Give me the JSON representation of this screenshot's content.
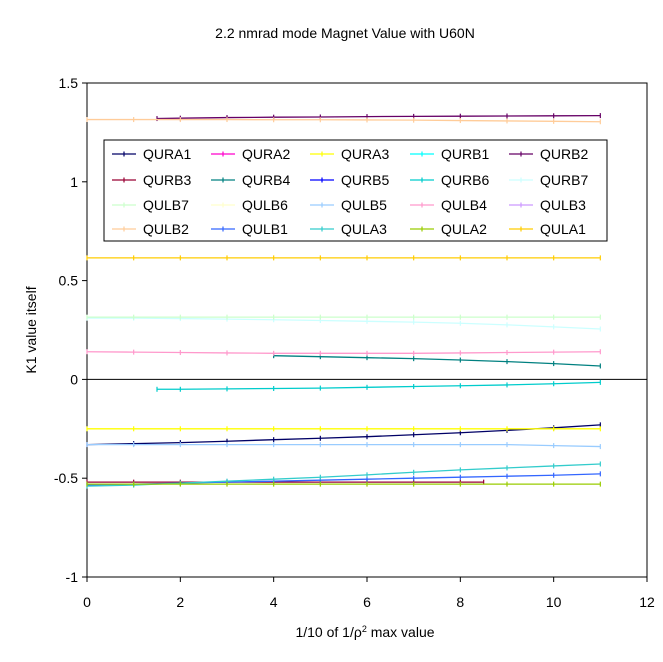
{
  "chart_data": {
    "type": "line",
    "title": "2.2 nmrad mode Magnet Value with U60N",
    "xlabel_prefix": "1/10 of 1/",
    "xlabel_rho": "ρ",
    "xlabel_sup": "2",
    "xlabel_suffix": " max value",
    "ylabel": "K1 value itself",
    "xlim": [
      0,
      12
    ],
    "ylim": [
      -1,
      1.5
    ],
    "xticks": [
      "0",
      "2",
      "4",
      "6",
      "8",
      "10",
      "12"
    ],
    "yticks": [
      "-1",
      "-0.5",
      "0",
      "0.5",
      "1",
      "1.5"
    ],
    "grid": false,
    "legend_position": "upper-center, inside plot area",
    "series": [
      {
        "name": "QURA1",
        "color": "#000066",
        "x": [
          0,
          1,
          2,
          3,
          4,
          5,
          6,
          7,
          8,
          9,
          10,
          11
        ],
        "values": [
          -0.33,
          -0.325,
          -0.32,
          -0.313,
          -0.305,
          -0.298,
          -0.29,
          -0.28,
          -0.27,
          -0.258,
          -0.245,
          -0.23
        ]
      },
      {
        "name": "QURA2",
        "color": "#ff00cc",
        "x": [],
        "values": []
      },
      {
        "name": "QURA3",
        "color": "#ffff00",
        "x": [
          0,
          1,
          2,
          3,
          4,
          5,
          6,
          7,
          8,
          9,
          10,
          11
        ],
        "values": [
          -0.25,
          -0.25,
          -0.25,
          -0.25,
          -0.25,
          -0.25,
          -0.25,
          -0.25,
          -0.25,
          -0.25,
          -0.25,
          -0.25
        ]
      },
      {
        "name": "QURB1",
        "color": "#00ffff",
        "x": [],
        "values": []
      },
      {
        "name": "QURB2",
        "color": "#660066",
        "x": [
          1.5,
          2,
          3,
          4,
          5,
          6,
          7,
          8,
          9,
          10,
          11
        ],
        "values": [
          1.32,
          1.322,
          1.325,
          1.327,
          1.328,
          1.33,
          1.331,
          1.332,
          1.333,
          1.334,
          1.335
        ]
      },
      {
        "name": "QURB3",
        "color": "#990033",
        "x": [
          0,
          1,
          2,
          3,
          4,
          5,
          6,
          7,
          8,
          8.5
        ],
        "values": [
          -0.52,
          -0.52,
          -0.52,
          -0.52,
          -0.52,
          -0.52,
          -0.52,
          -0.52,
          -0.52,
          -0.52
        ]
      },
      {
        "name": "QURB4",
        "color": "#008080",
        "x": [
          4,
          5,
          6,
          7,
          8,
          9,
          10,
          11
        ],
        "values": [
          0.12,
          0.115,
          0.11,
          0.105,
          0.098,
          0.09,
          0.08,
          0.068
        ]
      },
      {
        "name": "QURB5",
        "color": "#0000ff",
        "x": [],
        "values": []
      },
      {
        "name": "QURB6",
        "color": "#00cccc",
        "x": [
          1.5,
          2,
          3,
          4,
          5,
          6,
          7,
          8,
          9,
          10,
          11
        ],
        "values": [
          -0.05,
          -0.05,
          -0.048,
          -0.046,
          -0.044,
          -0.04,
          -0.036,
          -0.032,
          -0.028,
          -0.022,
          -0.015
        ]
      },
      {
        "name": "QURB7",
        "color": "#ccffff",
        "x": [
          0,
          1,
          2,
          3,
          4,
          5,
          6,
          7,
          8,
          9,
          10,
          11
        ],
        "values": [
          0.31,
          0.31,
          0.308,
          0.305,
          0.302,
          0.298,
          0.294,
          0.29,
          0.284,
          0.276,
          0.266,
          0.255
        ]
      },
      {
        "name": "QULB7",
        "color": "#ccffcc",
        "x": [
          0,
          1,
          2,
          3,
          4,
          5,
          6,
          7,
          8,
          9,
          10,
          11
        ],
        "values": [
          0.315,
          0.315,
          0.315,
          0.315,
          0.315,
          0.315,
          0.315,
          0.315,
          0.315,
          0.315,
          0.315,
          0.315
        ]
      },
      {
        "name": "QULB6",
        "color": "#ffffcc",
        "x": [],
        "values": []
      },
      {
        "name": "QULB5",
        "color": "#99ccff",
        "x": [
          0,
          1,
          2,
          3,
          4,
          5,
          6,
          7,
          8,
          9,
          10,
          11
        ],
        "values": [
          -0.33,
          -0.33,
          -0.33,
          -0.33,
          -0.33,
          -0.33,
          -0.33,
          -0.33,
          -0.33,
          -0.33,
          -0.335,
          -0.34
        ]
      },
      {
        "name": "QULB4",
        "color": "#ff99cc",
        "x": [
          0,
          1,
          2,
          3,
          4,
          5,
          6,
          7,
          8,
          9,
          10,
          11
        ],
        "values": [
          0.14,
          0.138,
          0.136,
          0.134,
          0.132,
          0.132,
          0.132,
          0.132,
          0.134,
          0.136,
          0.138,
          0.14
        ]
      },
      {
        "name": "QULB3",
        "color": "#cc99ff",
        "x": [],
        "values": []
      },
      {
        "name": "QULB2",
        "color": "#ffcc99",
        "x": [
          0,
          1,
          2,
          3,
          4,
          5,
          6,
          7,
          8,
          9,
          10,
          11
        ],
        "values": [
          1.315,
          1.315,
          1.315,
          1.315,
          1.314,
          1.314,
          1.313,
          1.312,
          1.31,
          1.308,
          1.306,
          1.304
        ]
      },
      {
        "name": "QULB1",
        "color": "#3366ff",
        "x": [
          0,
          1,
          2,
          3,
          4,
          5,
          6,
          7,
          8,
          9,
          10,
          11
        ],
        "values": [
          -0.535,
          -0.53,
          -0.525,
          -0.52,
          -0.515,
          -0.51,
          -0.505,
          -0.5,
          -0.495,
          -0.49,
          -0.485,
          -0.478
        ]
      },
      {
        "name": "QULA3",
        "color": "#33cccc",
        "x": [
          0,
          1,
          2,
          3,
          4,
          5,
          6,
          7,
          8,
          9,
          10,
          11
        ],
        "values": [
          -0.54,
          -0.535,
          -0.525,
          -0.515,
          -0.505,
          -0.495,
          -0.483,
          -0.47,
          -0.458,
          -0.448,
          -0.438,
          -0.428
        ]
      },
      {
        "name": "QULA2",
        "color": "#99cc00",
        "x": [
          0,
          1,
          2,
          3,
          4,
          5,
          6,
          7,
          8,
          9,
          10,
          11
        ],
        "values": [
          -0.53,
          -0.53,
          -0.53,
          -0.53,
          -0.53,
          -0.53,
          -0.53,
          -0.53,
          -0.53,
          -0.53,
          -0.53,
          -0.53
        ]
      },
      {
        "name": "QULA1",
        "color": "#ffcc00",
        "x": [
          0,
          1,
          2,
          3,
          4,
          5,
          6,
          7,
          8,
          9,
          10,
          11
        ],
        "values": [
          0.615,
          0.615,
          0.615,
          0.615,
          0.615,
          0.615,
          0.615,
          0.615,
          0.615,
          0.615,
          0.615,
          0.615
        ]
      }
    ]
  }
}
